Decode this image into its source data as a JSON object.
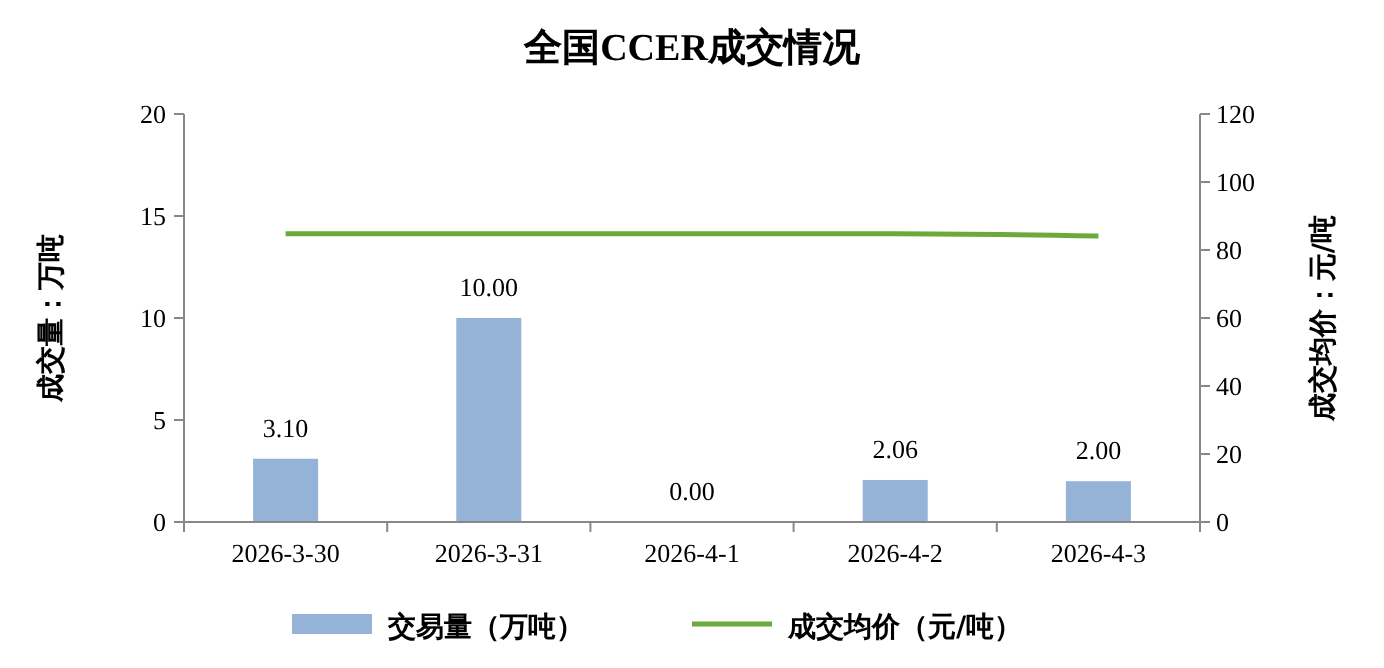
{
  "chart_data": {
    "type": "bar",
    "title": "全国CCER成交情况",
    "ylabel": "成交量：万吨",
    "y2label": "成交均价：元/吨",
    "categories": [
      "2026-3-30",
      "2026-3-31",
      "2026-4-1",
      "2026-4-2",
      "2026-4-3"
    ],
    "series": [
      {
        "name": "交易量（万吨）",
        "color": "#95b3d7",
        "values": [
          3.1,
          10.0,
          0.0,
          2.06,
          2.0
        ],
        "value_labels": [
          "3.10",
          "10.00",
          "0.00",
          "2.06",
          "2.00"
        ]
      },
      {
        "name": "成交均价（元/吨）",
        "type": "line",
        "axis": "y2",
        "color": "#6aaa3a",
        "values": [
          84.8,
          84.8,
          84.8,
          84.8,
          84.1
        ]
      }
    ],
    "ylim": [
      0,
      20
    ],
    "yticks": [
      0,
      5,
      10,
      15,
      20
    ],
    "y2lim": [
      0,
      120
    ],
    "y2ticks": [
      0,
      20,
      40,
      60,
      80,
      100,
      120
    ],
    "grid": false,
    "legend": "bottom",
    "marker": "none"
  }
}
